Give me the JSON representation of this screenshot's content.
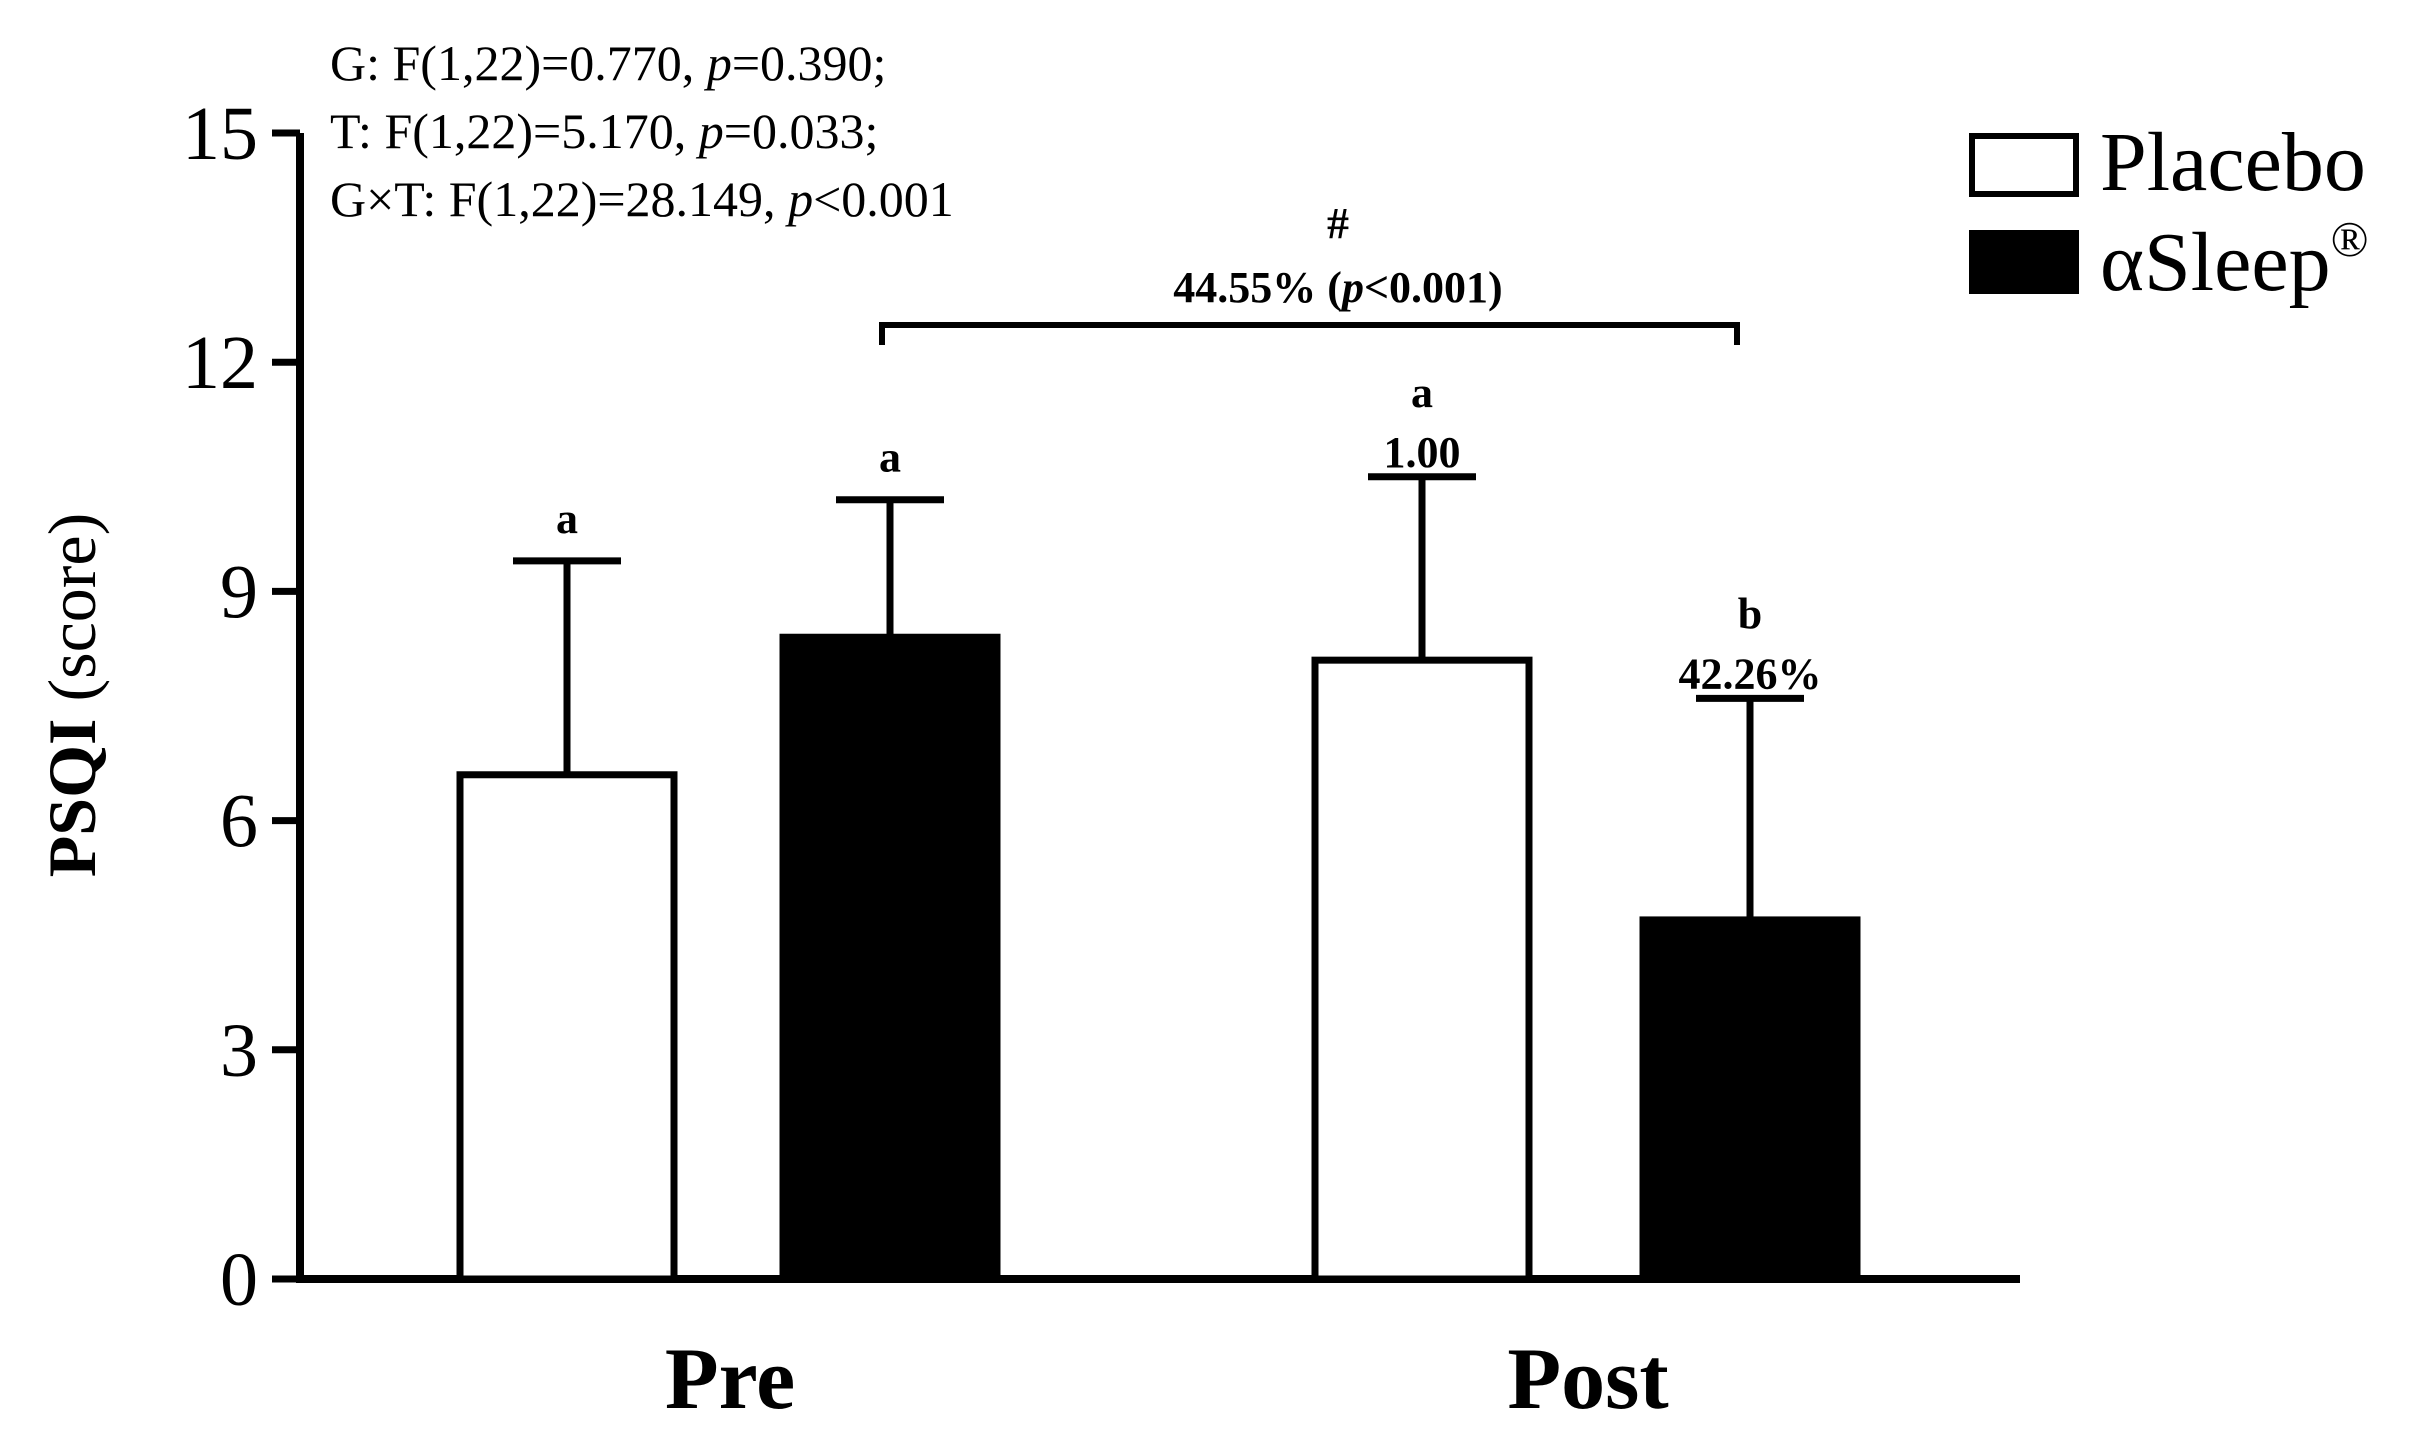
{
  "chart_data": {
    "type": "bar",
    "title": "",
    "xlabel": "",
    "ylabel": "PSQI (score)",
    "ylim": [
      0,
      15
    ],
    "yticks": [
      "0",
      "3",
      "6",
      "9",
      "12",
      "15"
    ],
    "categories": [
      "Pre",
      "Post"
    ],
    "series": [
      {
        "name": "Placebo",
        "fill": "#ffffff",
        "values": [
          6.6,
          8.1
        ],
        "errors": [
          2.8,
          2.4
        ],
        "labels": [
          "a",
          "a"
        ],
        "sublabels": [
          "",
          "1.00"
        ]
      },
      {
        "name": "αSleep",
        "legend_suffix": "®",
        "fill": "#000000",
        "values": [
          8.4,
          4.7
        ],
        "errors": [
          1.8,
          2.9
        ],
        "labels": [
          "a",
          "b"
        ],
        "sublabels": [
          "",
          "42.26%"
        ]
      }
    ],
    "stats": {
      "line1": {
        "pre": "G: F(1,22)=0.770, ",
        "p": "p",
        "post": "=0.390;"
      },
      "line2": {
        "pre": "T: F(1,22)=5.170, ",
        "p": "p",
        "post": "=0.033;"
      },
      "line3": {
        "pre": "G×T: F(1,22)=28.149, ",
        "p": "p",
        "post": "<0.001"
      }
    },
    "bracket": {
      "symbol": "#",
      "pct": "44.55% (",
      "p": "p",
      "post": "<0.001)"
    },
    "colors": {
      "axis": "#000000",
      "placebo": "#ffffff",
      "asleep": "#000000"
    }
  }
}
